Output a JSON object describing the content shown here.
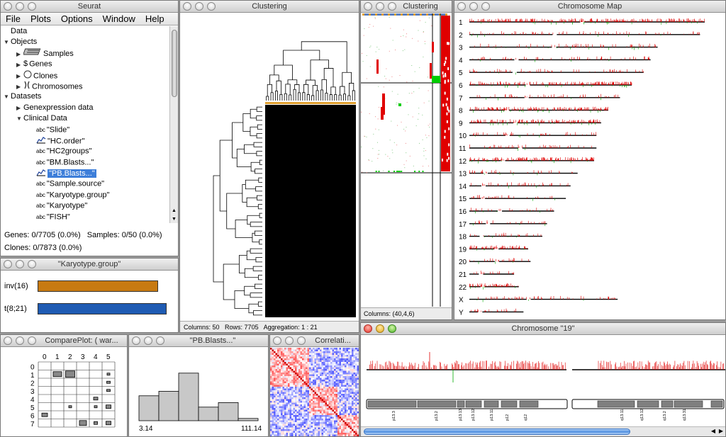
{
  "windows": {
    "seurat": {
      "title": "Seurat"
    },
    "karyotype": {
      "title": "\"Karyotype.group\""
    },
    "clustering_main": {
      "title": "Clustering"
    },
    "clustering_small": {
      "title": "Clustering"
    },
    "chromosome_map": {
      "title": "Chromosome Map"
    },
    "chromosome_19": {
      "title": "Chromosome \"19\""
    },
    "compare_plot": {
      "title": "ComparePlot: ( war..."
    },
    "pb_blasts": {
      "title": "\"PB.Blasts...\""
    },
    "correlation": {
      "title": "Correlati..."
    }
  },
  "menu": [
    "File",
    "Plots",
    "Options",
    "Window",
    "Help"
  ],
  "tree": [
    {
      "depth": 0,
      "label": "Data",
      "icon": "",
      "tri": ""
    },
    {
      "depth": 0,
      "label": "Objects",
      "icon": "",
      "tri": "open"
    },
    {
      "depth": 1,
      "label": "Samples",
      "icon": "samples-icon",
      "tri": "closed"
    },
    {
      "depth": 1,
      "label": "Genes",
      "icon": "genes-icon",
      "tri": "closed"
    },
    {
      "depth": 1,
      "label": "Clones",
      "icon": "clones-icon",
      "tri": "closed"
    },
    {
      "depth": 1,
      "label": "Chromosomes",
      "icon": "chromosomes-icon",
      "tri": "closed"
    },
    {
      "depth": 0,
      "label": "Datasets",
      "icon": "",
      "tri": "open"
    },
    {
      "depth": 1,
      "label": "Genexpression data",
      "icon": "",
      "tri": "closed"
    },
    {
      "depth": 1,
      "label": "Clinical Data",
      "icon": "",
      "tri": "open"
    },
    {
      "depth": 2,
      "label": "\"Slide\"",
      "icon": "abc-icon",
      "tri": ""
    },
    {
      "depth": 2,
      "label": "\"HC.order\"",
      "icon": "numeric-icon",
      "tri": ""
    },
    {
      "depth": 2,
      "label": "\"HC2groups\"",
      "icon": "abc-icon",
      "tri": ""
    },
    {
      "depth": 2,
      "label": "\"BM.Blasts...\"",
      "icon": "abc-icon",
      "tri": ""
    },
    {
      "depth": 2,
      "label": "\"PB.Blasts...\"",
      "icon": "numeric-icon",
      "tri": "",
      "selected": true
    },
    {
      "depth": 2,
      "label": "\"Sample.source\"",
      "icon": "abc-icon",
      "tri": ""
    },
    {
      "depth": 2,
      "label": "\"Karyotype.group\"",
      "icon": "abc-icon",
      "tri": ""
    },
    {
      "depth": 2,
      "label": "\"Karyotype\"",
      "icon": "abc-icon",
      "tri": ""
    },
    {
      "depth": 2,
      "label": "\"FISH\"",
      "icon": "abc-icon",
      "tri": ""
    }
  ],
  "icon_text": {
    "abc": "abc",
    "dollar": "$"
  },
  "status": {
    "genes": "Genes: 0/7705 (0.0%)",
    "samples": "Samples: 0/50 (0.0%)",
    "clones": "Clones: 0/7873 (0.0%)"
  },
  "karyotype_bars": [
    {
      "label": "inv(16)",
      "value": 0.85,
      "color": "#c77a12"
    },
    {
      "label": "t(8;21)",
      "value": 0.91,
      "color": "#1f5bb3"
    }
  ],
  "clustering_status": {
    "columns": "Columns: 50",
    "rows": "Rows: 7705",
    "aggregation": "Aggregation: 1 : 21"
  },
  "clustering_small_status": "Columns: (40,4,6)",
  "chromosomes": [
    "1",
    "2",
    "3",
    "4",
    "5",
    "6",
    "7",
    "8",
    "9",
    "10",
    "11",
    "12",
    "13",
    "14",
    "15",
    "16",
    "17",
    "18",
    "19",
    "20",
    "21",
    "22",
    "X",
    "Y"
  ],
  "compare_plot": {
    "cols": [
      "0",
      "1",
      "2",
      "3",
      "4",
      "5"
    ],
    "rows": [
      "0",
      "1",
      "2",
      "3",
      "4",
      "5",
      "6",
      "7"
    ]
  },
  "histogram": {
    "min_label": "3.14",
    "max_label": "111.14",
    "values": [
      11,
      13,
      21,
      6,
      8,
      1
    ]
  },
  "chr19_bands": [
    "p13.3",
    "p13.2",
    "p13.13",
    "p13.12",
    "p13.11",
    "p12",
    "q12",
    "q13.11",
    "q13.12",
    "q13.2",
    "q13.31"
  ],
  "colors": {
    "accent": "#3d7ed9",
    "gain": "#e00000",
    "loss": "#00b000",
    "title_bar": "#d9d9d9"
  }
}
